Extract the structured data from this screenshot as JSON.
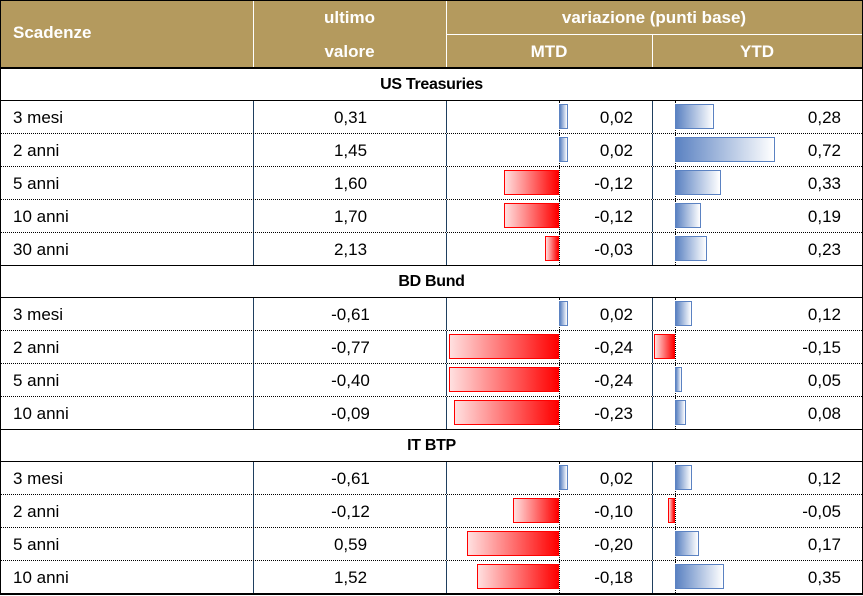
{
  "header": {
    "scadenze": "Scadenze",
    "ultimo_line1": "ultimo",
    "ultimo_line2": "valore",
    "variazione": "variazione (punti base)",
    "mtd": "MTD",
    "ytd": "YTD"
  },
  "colors": {
    "header_bg": "#b49a5e",
    "positive_bar": "#5b82c2",
    "negative_bar": "#ff0000"
  },
  "sections": [
    {
      "title": "US Treasuries",
      "rows": [
        {
          "scadenza": "3 mesi",
          "valore": "0,31",
          "mtd": 0.02,
          "ytd": 0.28
        },
        {
          "scadenza": "2 anni",
          "valore": "1,45",
          "mtd": 0.02,
          "ytd": 0.72
        },
        {
          "scadenza": "5 anni",
          "valore": "1,60",
          "mtd": -0.12,
          "ytd": 0.33
        },
        {
          "scadenza": "10 anni",
          "valore": "1,70",
          "mtd": -0.12,
          "ytd": 0.19
        },
        {
          "scadenza": "30 anni",
          "valore": "2,13",
          "mtd": -0.03,
          "ytd": 0.23
        }
      ]
    },
    {
      "title": "BD Bund",
      "rows": [
        {
          "scadenza": "3 mesi",
          "valore": "-0,61",
          "mtd": 0.02,
          "ytd": 0.12
        },
        {
          "scadenza": "2 anni",
          "valore": "-0,77",
          "mtd": -0.24,
          "ytd": -0.15
        },
        {
          "scadenza": "5 anni",
          "valore": "-0,40",
          "mtd": -0.24,
          "ytd": 0.05
        },
        {
          "scadenza": "10 anni",
          "valore": "-0,09",
          "mtd": -0.23,
          "ytd": 0.08
        }
      ]
    },
    {
      "title": "IT BTP",
      "rows": [
        {
          "scadenza": "3 mesi",
          "valore": "-0,61",
          "mtd": 0.02,
          "ytd": 0.12
        },
        {
          "scadenza": "2 anni",
          "valore": "-0,12",
          "mtd": -0.1,
          "ytd": -0.05
        },
        {
          "scadenza": "5 anni",
          "valore": "0,59",
          "mtd": -0.2,
          "ytd": 0.17
        },
        {
          "scadenza": "10 anni",
          "valore": "1,52",
          "mtd": -0.18,
          "ytd": 0.35
        }
      ]
    }
  ]
}
